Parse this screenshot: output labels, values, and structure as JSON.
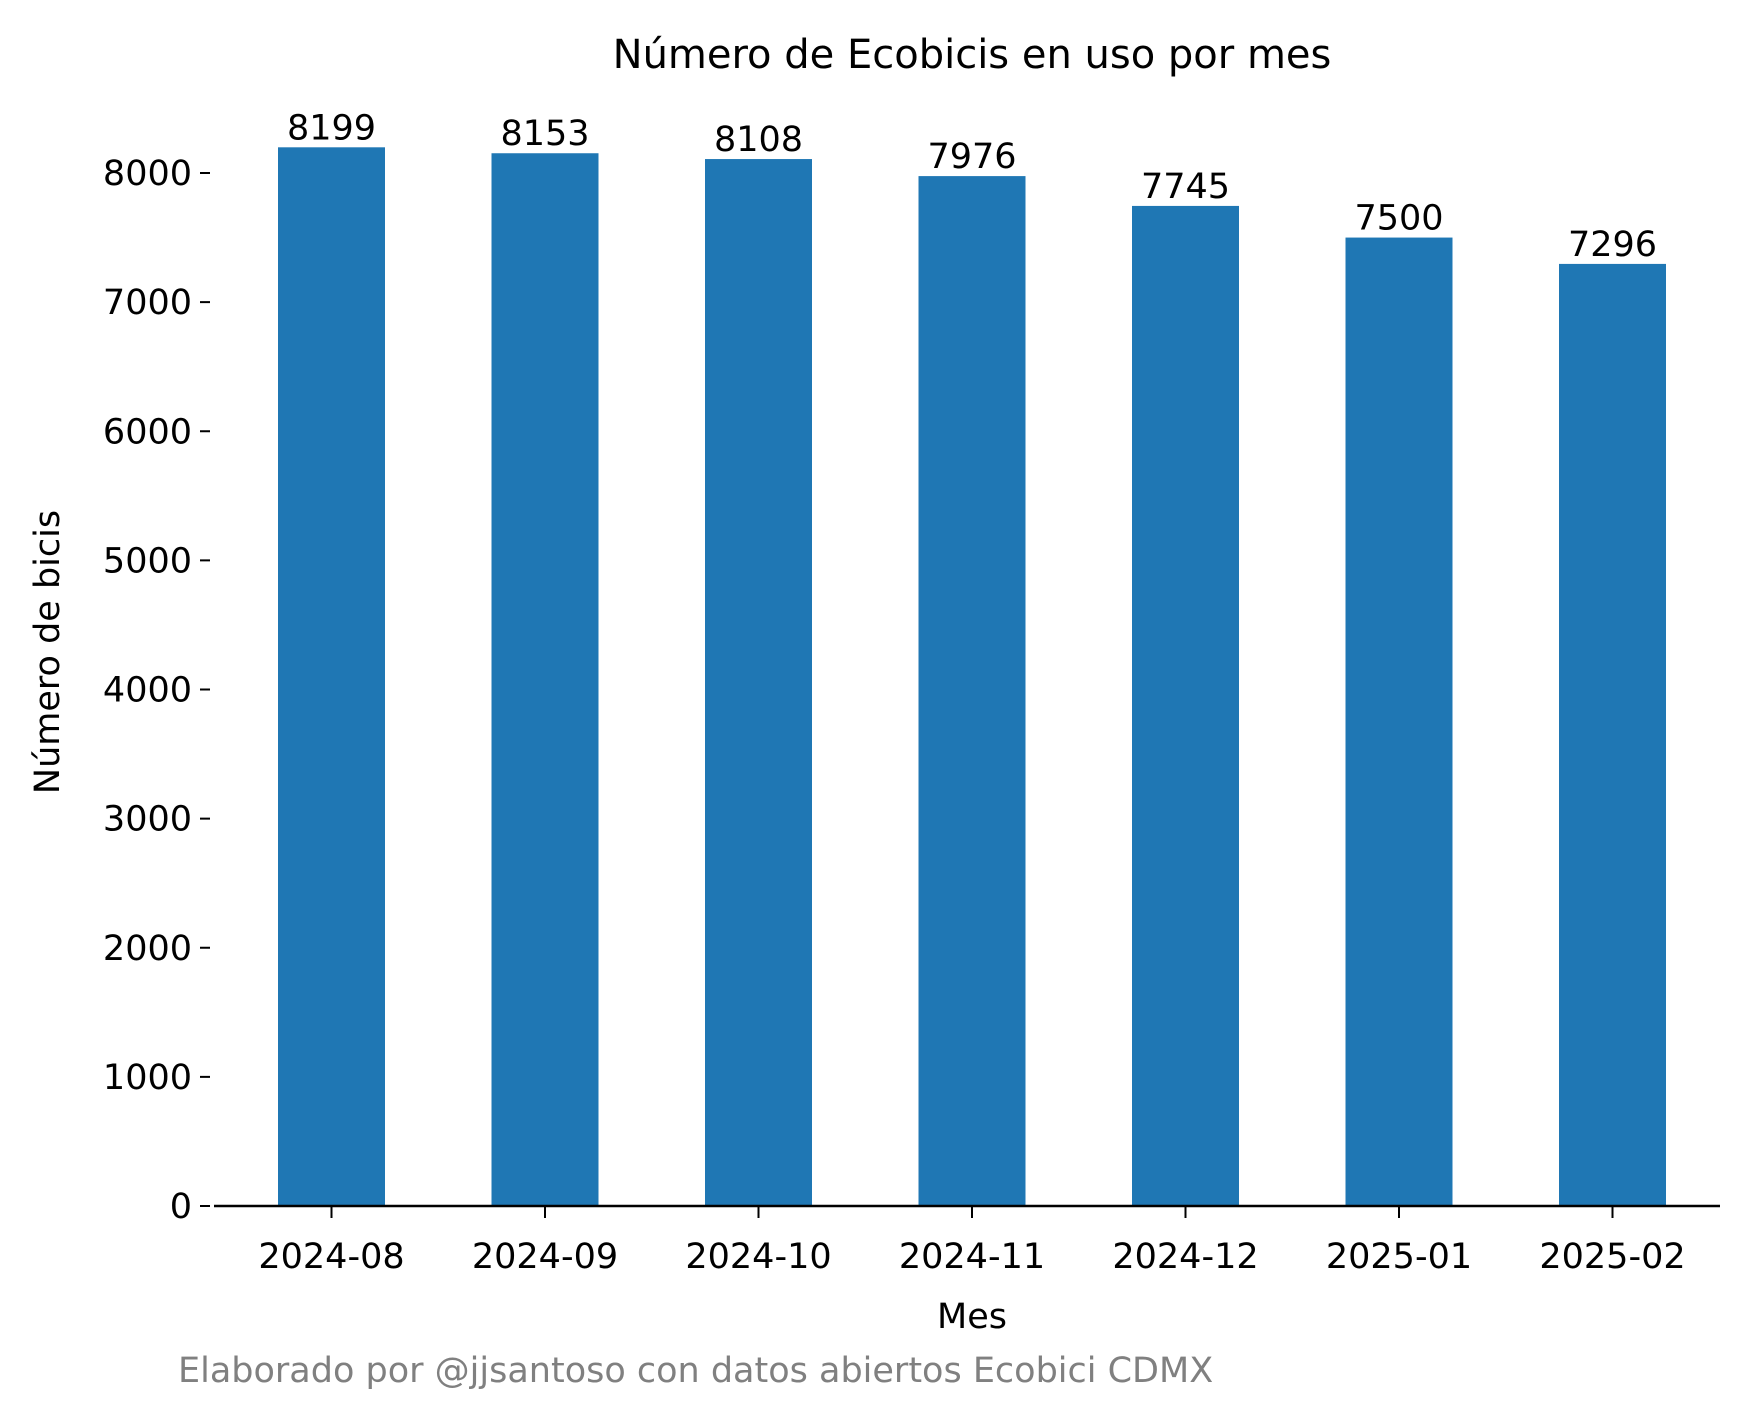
{
  "chart_data": {
    "type": "bar",
    "title": "Número de Ecobicis en uso por mes",
    "xlabel": "Mes",
    "ylabel": "Número de bicis",
    "categories": [
      "2024-08",
      "2024-09",
      "2024-10",
      "2024-11",
      "2024-12",
      "2025-01",
      "2025-02"
    ],
    "values": [
      8199,
      8153,
      8108,
      7976,
      7745,
      7500,
      7296
    ],
    "ylim": [
      0,
      8600
    ],
    "yticks": [
      0,
      1000,
      2000,
      3000,
      4000,
      5000,
      6000,
      7000,
      8000
    ],
    "grid": true,
    "bar_color": "#1f77b4",
    "caption": "Elaborado por @jjsantoso con datos abiertos Ecobici CDMX"
  }
}
